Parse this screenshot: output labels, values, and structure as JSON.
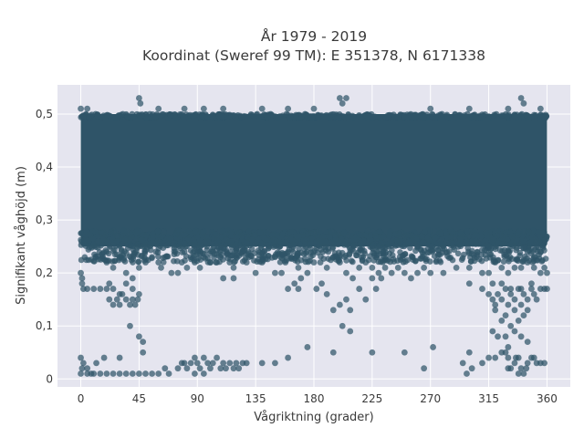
{
  "chart_data": {
    "type": "scatter",
    "title": [
      "År 1979 - 2019",
      "Koordinat (Sweref 99 TM): E 351378, N 6171338"
    ],
    "xlabel": "Vågriktning (grader)",
    "ylabel": "Signifikant våghöjd (m)",
    "xlim": [
      -18,
      378
    ],
    "ylim": [
      -0.015,
      0.555
    ],
    "x_ticks": [
      0,
      45,
      90,
      135,
      180,
      225,
      270,
      315,
      360
    ],
    "x_tick_labels": [
      "0",
      "45",
      "90",
      "135",
      "180",
      "225",
      "270",
      "315",
      "360"
    ],
    "y_ticks": [
      0,
      0.1,
      0.2,
      0.3,
      0.4,
      0.5
    ],
    "y_tick_labels": [
      "0",
      "0,1",
      "0,2",
      "0,3",
      "0,4",
      "0,5"
    ],
    "grid": true,
    "marker_color": "#2f5468",
    "background_color": "#e5e5ef",
    "dense_band": {
      "x_range": [
        0,
        360
      ],
      "y_range": [
        0.25,
        0.5
      ]
    },
    "points": [
      [
        0,
        0.2
      ],
      [
        1,
        0.19
      ],
      [
        1,
        0.18
      ],
      [
        2,
        0.17
      ],
      [
        5,
        0.17
      ],
      [
        10,
        0.17
      ],
      [
        15,
        0.17
      ],
      [
        20,
        0.17
      ],
      [
        22,
        0.18
      ],
      [
        25,
        0.17
      ],
      [
        22,
        0.15
      ],
      [
        25,
        0.14
      ],
      [
        28,
        0.15
      ],
      [
        30,
        0.14
      ],
      [
        32,
        0.16
      ],
      [
        35,
        0.15
      ],
      [
        38,
        0.14
      ],
      [
        40,
        0.15
      ],
      [
        42,
        0.14
      ],
      [
        44,
        0.15
      ],
      [
        45,
        0.16
      ],
      [
        30,
        0.16
      ],
      [
        35,
        0.18
      ],
      [
        40,
        0.17
      ],
      [
        20,
        0.22
      ],
      [
        25,
        0.21
      ],
      [
        30,
        0.23
      ],
      [
        35,
        0.2
      ],
      [
        40,
        0.19
      ],
      [
        45,
        0.21
      ],
      [
        38,
        0.1
      ],
      [
        45,
        0.08
      ],
      [
        48,
        0.07
      ],
      [
        48,
        0.05
      ],
      [
        50,
        0.22
      ],
      [
        55,
        0.23
      ],
      [
        58,
        0.24
      ],
      [
        60,
        0.22
      ],
      [
        62,
        0.21
      ],
      [
        65,
        0.23
      ],
      [
        70,
        0.2
      ],
      [
        75,
        0.2
      ],
      [
        78,
        0.22
      ],
      [
        80,
        0.24
      ],
      [
        82,
        0.21
      ],
      [
        85,
        0.23
      ],
      [
        88,
        0.22
      ],
      [
        90,
        0.24
      ],
      [
        92,
        0.21
      ],
      [
        95,
        0.23
      ],
      [
        100,
        0.22
      ],
      [
        102,
        0.24
      ],
      [
        105,
        0.22
      ],
      [
        108,
        0.23
      ],
      [
        112,
        0.24
      ],
      [
        115,
        0.22
      ],
      [
        118,
        0.21
      ],
      [
        120,
        0.23
      ],
      [
        125,
        0.24
      ],
      [
        128,
        0.22
      ],
      [
        130,
        0.23
      ],
      [
        135,
        0.2
      ],
      [
        140,
        0.22
      ],
      [
        150,
        0.23
      ],
      [
        160,
        0.24
      ],
      [
        155,
        0.2
      ],
      [
        158,
        0.22
      ],
      [
        168,
        0.21
      ],
      [
        170,
        0.19
      ],
      [
        175,
        0.2
      ],
      [
        180,
        0.22
      ],
      [
        185,
        0.22
      ],
      [
        190,
        0.21
      ],
      [
        195,
        0.23
      ],
      [
        200,
        0.22
      ],
      [
        205,
        0.2
      ],
      [
        210,
        0.19
      ],
      [
        215,
        0.21
      ],
      [
        220,
        0.22
      ],
      [
        225,
        0.21
      ],
      [
        230,
        0.2
      ],
      [
        235,
        0.21
      ],
      [
        240,
        0.2
      ],
      [
        245,
        0.21
      ],
      [
        250,
        0.2
      ],
      [
        255,
        0.19
      ],
      [
        260,
        0.2
      ],
      [
        265,
        0.21
      ],
      [
        270,
        0.2
      ],
      [
        280,
        0.2
      ],
      [
        290,
        0.21
      ],
      [
        300,
        0.21
      ],
      [
        310,
        0.2
      ],
      [
        315,
        0.2
      ],
      [
        320,
        0.22
      ],
      [
        325,
        0.21
      ],
      [
        330,
        0.2
      ],
      [
        335,
        0.21
      ],
      [
        340,
        0.21
      ],
      [
        345,
        0.22
      ],
      [
        350,
        0.21
      ],
      [
        355,
        0.2
      ],
      [
        358,
        0.21
      ],
      [
        360,
        0.2
      ],
      [
        345,
        0.24
      ],
      [
        350,
        0.23
      ],
      [
        355,
        0.24
      ],
      [
        300,
        0.18
      ],
      [
        310,
        0.17
      ],
      [
        165,
        0.18
      ],
      [
        150,
        0.2
      ],
      [
        160,
        0.17
      ],
      [
        168,
        0.17
      ],
      [
        200,
        0.14
      ],
      [
        205,
        0.15
      ],
      [
        208,
        0.13
      ],
      [
        215,
        0.17
      ],
      [
        208,
        0.09
      ],
      [
        202,
        0.1
      ],
      [
        195,
        0.13
      ],
      [
        220,
        0.15
      ],
      [
        225,
        0.19
      ],
      [
        228,
        0.17
      ],
      [
        232,
        0.19
      ],
      [
        186,
        0.18
      ],
      [
        182,
        0.17
      ],
      [
        190,
        0.16
      ],
      [
        100,
        0.22
      ],
      [
        110,
        0.19
      ],
      [
        118,
        0.19
      ],
      [
        315,
        0.16
      ],
      [
        318,
        0.15
      ],
      [
        320,
        0.14
      ],
      [
        322,
        0.16
      ],
      [
        325,
        0.15
      ],
      [
        328,
        0.17
      ],
      [
        330,
        0.14
      ],
      [
        332,
        0.16
      ],
      [
        335,
        0.15
      ],
      [
        338,
        0.17
      ],
      [
        340,
        0.14
      ],
      [
        342,
        0.16
      ],
      [
        345,
        0.15
      ],
      [
        348,
        0.17
      ],
      [
        350,
        0.16
      ],
      [
        352,
        0.15
      ],
      [
        355,
        0.17
      ],
      [
        358,
        0.17
      ],
      [
        360,
        0.17
      ],
      [
        318,
        0.18
      ],
      [
        325,
        0.18
      ],
      [
        332,
        0.17
      ],
      [
        340,
        0.17
      ],
      [
        348,
        0.18
      ],
      [
        328,
        0.12
      ],
      [
        332,
        0.1
      ],
      [
        335,
        0.13
      ],
      [
        338,
        0.11
      ],
      [
        342,
        0.12
      ],
      [
        345,
        0.13
      ],
      [
        318,
        0.09
      ],
      [
        322,
        0.08
      ],
      [
        330,
        0.06
      ],
      [
        340,
        0.08
      ],
      [
        345,
        0.07
      ],
      [
        320,
        0.13
      ],
      [
        325,
        0.11
      ],
      [
        328,
        0.08
      ],
      [
        335,
        0.09
      ],
      [
        328,
        0.05
      ],
      [
        60,
        0.01
      ],
      [
        55,
        0.01
      ],
      [
        50,
        0.01
      ],
      [
        45,
        0.01
      ],
      [
        40,
        0.01
      ],
      [
        35,
        0.01
      ],
      [
        30,
        0.01
      ],
      [
        25,
        0.01
      ],
      [
        20,
        0.01
      ],
      [
        15,
        0.01
      ],
      [
        10,
        0.01
      ],
      [
        5,
        0.01
      ],
      [
        0,
        0.01
      ],
      [
        2,
        0.03
      ],
      [
        5,
        0.02
      ],
      [
        8,
        0.01
      ],
      [
        0,
        0.04
      ],
      [
        1,
        0.02
      ],
      [
        12,
        0.03
      ],
      [
        18,
        0.04
      ],
      [
        30,
        0.04
      ],
      [
        65,
        0.02
      ],
      [
        68,
        0.01
      ],
      [
        75,
        0.02
      ],
      [
        78,
        0.03
      ],
      [
        80,
        0.03
      ],
      [
        82,
        0.02
      ],
      [
        85,
        0.03
      ],
      [
        88,
        0.04
      ],
      [
        90,
        0.03
      ],
      [
        92,
        0.02
      ],
      [
        95,
        0.04
      ],
      [
        98,
        0.03
      ],
      [
        100,
        0.02
      ],
      [
        102,
        0.03
      ],
      [
        105,
        0.04
      ],
      [
        108,
        0.02
      ],
      [
        110,
        0.03
      ],
      [
        112,
        0.02
      ],
      [
        115,
        0.03
      ],
      [
        118,
        0.02
      ],
      [
        120,
        0.03
      ],
      [
        122,
        0.02
      ],
      [
        125,
        0.03
      ],
      [
        128,
        0.03
      ],
      [
        88,
        0.01
      ],
      [
        95,
        0.01
      ],
      [
        140,
        0.03
      ],
      [
        150,
        0.03
      ],
      [
        160,
        0.04
      ],
      [
        175,
        0.06
      ],
      [
        195,
        0.05
      ],
      [
        225,
        0.05
      ],
      [
        250,
        0.05
      ],
      [
        265,
        0.02
      ],
      [
        272,
        0.06
      ],
      [
        295,
        0.03
      ],
      [
        298,
        0.01
      ],
      [
        300,
        0.05
      ],
      [
        302,
        0.02
      ],
      [
        310,
        0.03
      ],
      [
        315,
        0.04
      ],
      [
        320,
        0.04
      ],
      [
        325,
        0.05
      ],
      [
        330,
        0.04
      ],
      [
        335,
        0.03
      ],
      [
        338,
        0.01
      ],
      [
        340,
        0.02
      ],
      [
        342,
        0.01
      ],
      [
        345,
        0.03
      ],
      [
        348,
        0.04
      ],
      [
        350,
        0.04
      ],
      [
        352,
        0.03
      ],
      [
        355,
        0.03
      ],
      [
        358,
        0.03
      ],
      [
        332,
        0.02
      ],
      [
        336,
        0.04
      ],
      [
        344,
        0.02
      ],
      [
        338,
        0.04
      ],
      [
        330,
        0.02
      ],
      [
        45,
        0.53
      ],
      [
        46,
        0.52
      ],
      [
        140,
        0.51
      ],
      [
        200,
        0.53
      ],
      [
        202,
        0.52
      ],
      [
        205,
        0.53
      ],
      [
        340,
        0.53
      ],
      [
        342,
        0.52
      ],
      [
        60,
        0.51
      ],
      [
        80,
        0.51
      ],
      [
        95,
        0.51
      ],
      [
        110,
        0.51
      ],
      [
        160,
        0.51
      ],
      [
        180,
        0.51
      ],
      [
        270,
        0.51
      ],
      [
        300,
        0.51
      ],
      [
        330,
        0.51
      ],
      [
        355,
        0.51
      ],
      [
        5,
        0.51
      ],
      [
        0,
        0.51
      ]
    ]
  }
}
